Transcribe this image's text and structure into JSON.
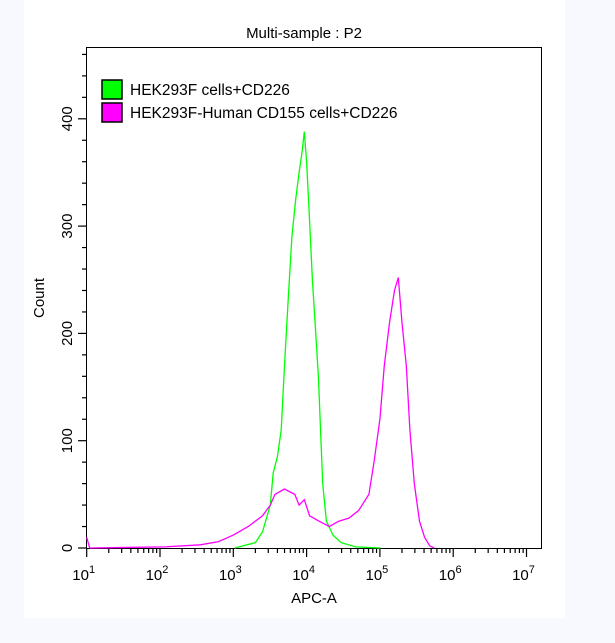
{
  "chart_data": {
    "type": "line",
    "title": "Multi-sample : P2",
    "xlabel": "APC-A",
    "ylabel": "Count",
    "xscale": "log",
    "xlim": [
      10,
      15800000
    ],
    "ylim": [
      0,
      467
    ],
    "xticks": [
      {
        "base": "10",
        "exp": "1"
      },
      {
        "base": "10",
        "exp": "2"
      },
      {
        "base": "10",
        "exp": "3"
      },
      {
        "base": "10",
        "exp": "4"
      },
      {
        "base": "10",
        "exp": "5"
      },
      {
        "base": "10",
        "exp": "6"
      },
      {
        "base": "10",
        "exp": "7"
      }
    ],
    "yticks": [
      "0",
      "100",
      "200",
      "300",
      "400"
    ],
    "grid": false,
    "legend_position": "top-left",
    "series": [
      {
        "name": "HEK293F cells+CD226",
        "color": "#00ff00",
        "x": [
          1050,
          2000,
          2500,
          3200,
          3500,
          4000,
          4500,
          5000,
          5600,
          6300,
          7100,
          7900,
          8700,
          9300,
          10000,
          10700,
          12000,
          14500,
          16600,
          18600,
          22900,
          29500,
          46800,
          102000
        ],
        "y": [
          0,
          5,
          15,
          40,
          70,
          85,
          110,
          170,
          230,
          290,
          325,
          350,
          370,
          388,
          360,
          320,
          250,
          160,
          60,
          25,
          12,
          5,
          1,
          0
        ]
      },
      {
        "name": "HEK293F-Human CD155 cells+CD226",
        "color": "#ff00ff",
        "x": [
          10,
          11,
          117,
          355,
          630,
          1000,
          1600,
          2500,
          3200,
          3700,
          5000,
          6900,
          7900,
          9300,
          11000,
          14800,
          20400,
          27500,
          38000,
          51300,
          70800,
          83200,
          100000,
          115000,
          135000,
          158000,
          178000,
          200000,
          229000,
          257000,
          295000,
          347000,
          407000,
          479000,
          550000
        ],
        "y": [
          10,
          0,
          1,
          3,
          6,
          12,
          20,
          30,
          40,
          50,
          55,
          50,
          40,
          45,
          30,
          25,
          20,
          25,
          28,
          35,
          50,
          80,
          120,
          170,
          210,
          240,
          252,
          210,
          170,
          110,
          60,
          25,
          10,
          2,
          0
        ]
      }
    ]
  }
}
